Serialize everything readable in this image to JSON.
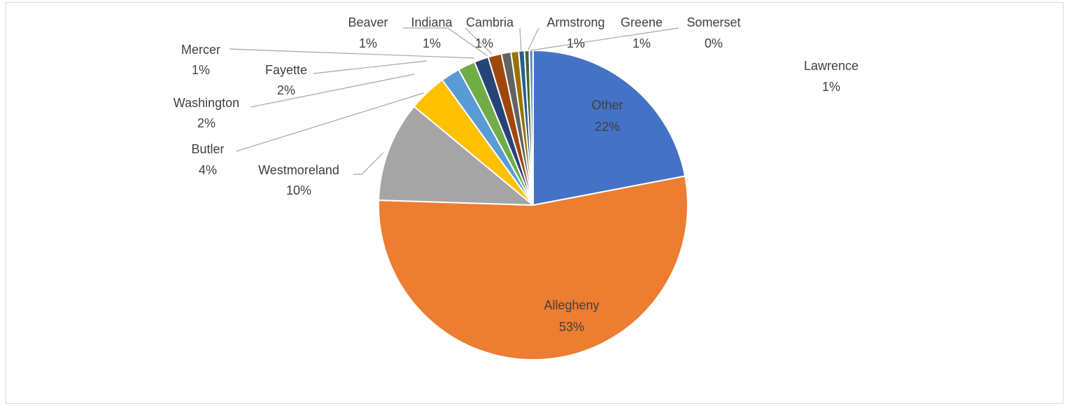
{
  "chart_data": {
    "type": "pie",
    "title": "",
    "slices": [
      {
        "name": "Other",
        "pct_label": "22%",
        "value": 22.0,
        "color": "#4472c4"
      },
      {
        "name": "Allegheny",
        "pct_label": "53%",
        "value": 53.5,
        "color": "#ed7d31"
      },
      {
        "name": "Westmoreland",
        "pct_label": "10%",
        "value": 10.5,
        "color": "#a5a5a5"
      },
      {
        "name": "Butler",
        "pct_label": "4%",
        "value": 4.0,
        "color": "#ffc000"
      },
      {
        "name": "Washington",
        "pct_label": "2%",
        "value": 2.0,
        "color": "#5b9bd5"
      },
      {
        "name": "Fayette",
        "pct_label": "2%",
        "value": 1.8,
        "color": "#70ad47"
      },
      {
        "name": "Mercer",
        "pct_label": "1%",
        "value": 1.5,
        "color": "#264478"
      },
      {
        "name": "Beaver",
        "pct_label": "1%",
        "value": 1.4,
        "color": "#9e480e"
      },
      {
        "name": "Indiana",
        "pct_label": "1%",
        "value": 1.0,
        "color": "#636363"
      },
      {
        "name": "Cambria",
        "pct_label": "1%",
        "value": 0.8,
        "color": "#997300"
      },
      {
        "name": "Armstrong",
        "pct_label": "1%",
        "value": 0.6,
        "color": "#255e91"
      },
      {
        "name": "Greene",
        "pct_label": "1%",
        "value": 0.5,
        "color": "#43682b"
      },
      {
        "name": "Somerset",
        "pct_label": "0%",
        "value": 0.4,
        "color": "#698ed0"
      }
    ],
    "extra_labels": [
      {
        "name": "Lawrence",
        "pct_label": "1%"
      }
    ]
  }
}
